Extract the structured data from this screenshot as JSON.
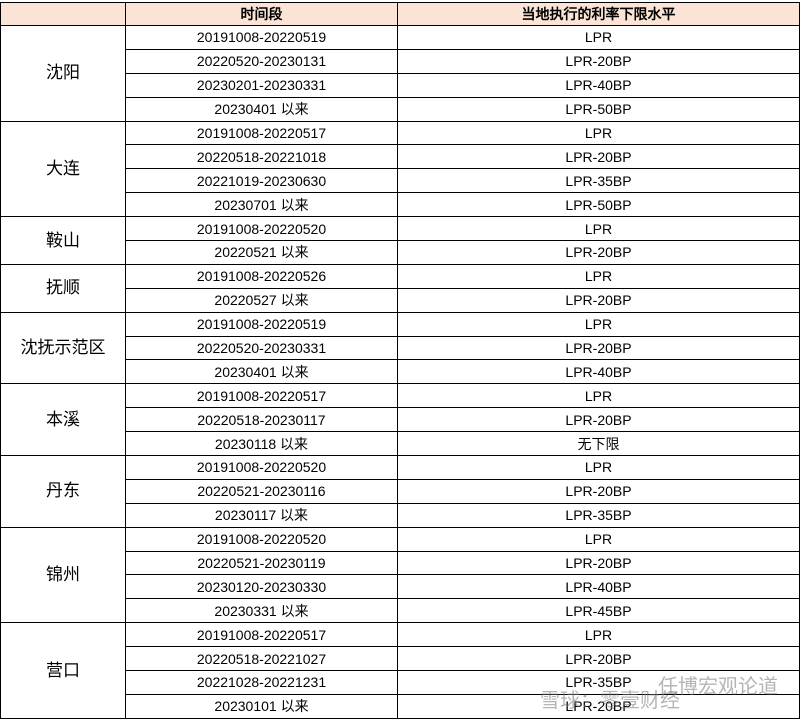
{
  "header": {
    "columns": [
      "时间段",
      "当地执行的利率下限水平"
    ]
  },
  "groups": [
    {
      "city": "沈阳",
      "rows": [
        [
          "20191008-20220519",
          "LPR"
        ],
        [
          "20220520-20230131",
          "LPR-20BP"
        ],
        [
          "20230201-20230331",
          "LPR-40BP"
        ],
        [
          "20230401 以来",
          "LPR-50BP"
        ]
      ]
    },
    {
      "city": "大连",
      "rows": [
        [
          "20191008-20220517",
          "LPR"
        ],
        [
          "20220518-20221018",
          "LPR-20BP"
        ],
        [
          "20221019-20230630",
          "LPR-35BP"
        ],
        [
          "20230701 以来",
          "LPR-50BP"
        ]
      ]
    },
    {
      "city": "鞍山",
      "rows": [
        [
          "20191008-20220520",
          "LPR"
        ],
        [
          "20220521 以来",
          "LPR-20BP"
        ]
      ]
    },
    {
      "city": "抚顺",
      "rows": [
        [
          "20191008-20220526",
          "LPR"
        ],
        [
          "20220527 以来",
          "LPR-20BP"
        ]
      ]
    },
    {
      "city": "沈抚示范区",
      "rows": [
        [
          "20191008-20220519",
          "LPR"
        ],
        [
          "20220520-20230331",
          "LPR-20BP"
        ],
        [
          "20230401 以来",
          "LPR-40BP"
        ]
      ]
    },
    {
      "city": "本溪",
      "rows": [
        [
          "20191008-20220517",
          "LPR"
        ],
        [
          "20220518-20230117",
          "LPR-20BP"
        ],
        [
          "20230118 以来",
          "无下限"
        ]
      ]
    },
    {
      "city": "丹东",
      "rows": [
        [
          "20191008-20220520",
          "LPR"
        ],
        [
          "20220521-20230116",
          "LPR-20BP"
        ],
        [
          "20230117 以来",
          "LPR-35BP"
        ]
      ]
    },
    {
      "city": "锦州",
      "rows": [
        [
          "20191008-20220520",
          "LPR"
        ],
        [
          "20220521-20230119",
          "LPR-20BP"
        ],
        [
          "20230120-20230330",
          "LPR-40BP"
        ],
        [
          "20230331 以来",
          "LPR-45BP"
        ]
      ]
    },
    {
      "city": "营口",
      "rows": [
        [
          "20191008-20220517",
          "LPR"
        ],
        [
          "20220518-20221027",
          "LPR-20BP"
        ],
        [
          "20221028-20221231",
          "LPR-35BP"
        ],
        [
          "20230101 以来",
          "LPR-20BP"
        ]
      ]
    }
  ],
  "watermark": [
    "任博宏观论道",
    "雪球：零壹财经"
  ]
}
